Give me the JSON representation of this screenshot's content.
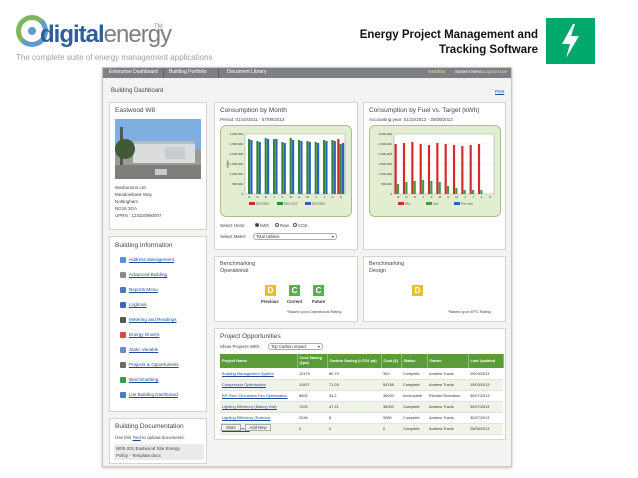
{
  "header": {
    "logo_digital": "digital",
    "logo_energy": "energy",
    "logo_tm": "TM",
    "tagline": "The complete suite of energy management applications",
    "title_line1": "Energy Project Management and",
    "title_line2": "Tracking Software",
    "icon": "lightning-bolt-icon",
    "brand_color": "#00a86b"
  },
  "nav": {
    "tabs": [
      "Enterprise Dashboard",
      "Building Portfolio",
      "Document Library"
    ],
    "user": "test0000",
    "links": [
      "System Menu",
      "Logout User"
    ]
  },
  "page": {
    "title": "Building Dashboard",
    "print": "Print"
  },
  "building": {
    "name": "Eastwood W8",
    "address": [
      "Warburtons Ltd",
      "Meadowbank Way",
      "Nottingham",
      "NG16 3GA",
      "UPRN : 124320990007"
    ]
  },
  "building_info": {
    "title": "Building Information",
    "items": [
      {
        "label": "Address Management",
        "icon": "address-icon",
        "color": "#5a8fd0"
      },
      {
        "label": "Advanced Building",
        "icon": "tools-icon",
        "color": "#8a8a8a"
      },
      {
        "label": "Reports Menu",
        "icon": "reports-icon",
        "color": "#4a78c0"
      },
      {
        "label": "Logbook",
        "icon": "logbook-icon",
        "color": "#3a6ab0"
      },
      {
        "label": "Metering and Readings",
        "icon": "meter-icon",
        "color": "#555555"
      },
      {
        "label": "Energy Drivers",
        "icon": "drivers-icon",
        "color": "#d04a4a"
      },
      {
        "label": "Static Variable",
        "icon": "static-icon",
        "color": "#6a8ac0"
      },
      {
        "label": "Projects & Opportunities",
        "icon": "projects-icon",
        "color": "#6a6a6a"
      },
      {
        "label": "Benchmarking",
        "icon": "benchmark-icon",
        "color": "#3a9a4a"
      },
      {
        "label": "Lite Building Dashboard",
        "icon": "dashboard-icon",
        "color": "#4a7ac0"
      }
    ]
  },
  "documentation": {
    "title": "Building Documentation",
    "instruction_pre": "Use this ",
    "instruction_link": "Tool",
    "instruction_post": " to upload documents.",
    "doc_line1": "W00-201 Eastwood Site Energy",
    "doc_line2": "Policy - Template.docx"
  },
  "consumption_month": {
    "title": "Consumption by Month",
    "period": "Period: 01/10/2011 - 07/09/2013",
    "units_label": "Select Units:",
    "units": [
      "kWh",
      "Raw",
      "CO2"
    ],
    "meter_label": "Select Meter:",
    "meter_value": "Total Utilities"
  },
  "consumption_fuel": {
    "title": "Consumption by Fuel vs. Target (kWh)",
    "period": "Accounting year: 01/10/2012 - 30/09/2013"
  },
  "chart_data": [
    {
      "type": "bar",
      "title": "",
      "ylabel": "kWh",
      "categories": [
        "O",
        "N",
        "D",
        "J",
        "F",
        "M",
        "A",
        "M",
        "J",
        "J",
        "A",
        "S"
      ],
      "ylim": [
        0,
        3000000
      ],
      "yticks": [
        "3,000,000",
        "2,500,000",
        "2,000,000",
        "1,500,000",
        "1,000,000",
        "500,000",
        "0"
      ],
      "series": [
        {
          "name": "2011-2012",
          "color": "#c8282a",
          "values": [
            null,
            null,
            null,
            null,
            null,
            null,
            null,
            null,
            null,
            null,
            null,
            2750000
          ]
        },
        {
          "name": "2012-2013",
          "color": "#2e8c2e",
          "values": [
            2750000,
            2650000,
            2800000,
            2750000,
            2600000,
            2800000,
            2700000,
            2650000,
            2600000,
            2700000,
            2700000,
            2500000
          ]
        },
        {
          "name": "2011-2012",
          "color": "#2f5fbf",
          "values": [
            2700000,
            2600000,
            2750000,
            2750000,
            2550000,
            2700000,
            2650000,
            2600000,
            2550000,
            2650000,
            2650000,
            2550000
          ]
        }
      ]
    },
    {
      "type": "bar",
      "title": "",
      "categories": [
        "O",
        "N",
        "D",
        "J",
        "F",
        "M",
        "A",
        "M",
        "J",
        "J",
        "A",
        "S"
      ],
      "ylim": [
        0,
        3000000
      ],
      "yticks": [
        "3,000,000",
        "2,500,000",
        "2,000,000",
        "1,500,000",
        "1,000,000",
        "500,000",
        "0"
      ],
      "series": [
        {
          "name": "Elec",
          "color": "#d42a2a",
          "values": [
            2500000,
            2550000,
            2600000,
            2500000,
            2450000,
            2550000,
            2500000,
            2450000,
            2400000,
            2450000,
            2500000,
            null
          ]
        },
        {
          "name": "Gas",
          "color": "#3aa040",
          "values": [
            500000,
            600000,
            650000,
            700000,
            650000,
            600000,
            400000,
            300000,
            200000,
            200000,
            200000,
            null
          ]
        },
        {
          "name": "Prev year",
          "color": "#2f5fbf",
          "values": [
            null,
            null,
            null,
            null,
            null,
            null,
            null,
            null,
            null,
            null,
            null,
            null
          ]
        }
      ]
    }
  ],
  "bench_op": {
    "title_line1": "Benchmarking",
    "title_line2": "Operational",
    "ratings": [
      {
        "grade": "D",
        "label": "Previous",
        "color": "#e6c12a"
      },
      {
        "grade": "C",
        "label": "Current",
        "color": "#56b14c"
      },
      {
        "grade": "C",
        "label": "Future",
        "color": "#56b14c"
      }
    ],
    "note": "*Based upon Operational Rating"
  },
  "bench_design": {
    "title_line1": "Benchmarking",
    "title_line2": "Design",
    "grade": "D",
    "color": "#e6c12a",
    "note": "*Based upon EPC Rating"
  },
  "projects": {
    "title": "Project Opportunities",
    "show_label": "Show Projects With:",
    "show_value": "Top Carbon Impact",
    "columns": [
      "Project Name",
      "Cost Saving (£pa)",
      "Carbon Saving (t CO2 pa)",
      "Cost (£)",
      "Status",
      "Owner",
      "Last Updated"
    ],
    "rows": [
      [
        "Building Management System",
        "12475",
        "80.79",
        "300",
        "Complete",
        "Andrew Travis",
        "19/03/2013"
      ],
      [
        "Compressor Optimisation",
        "11007",
        "71.28",
        "54768",
        "Complete",
        "Andrew Travis",
        "19/03/2013"
      ],
      [
        "BP Oven Circulation Fan Optimisation",
        "8600",
        "54.2",
        "36000",
        "Incomplete",
        "Richard Robottom",
        "30/07/2013"
      ],
      [
        "Lighting Efficiency (Baking Hall)",
        "7200",
        "47.21",
        "36000",
        "Complete",
        "Andrew Travis",
        "30/07/2013"
      ],
      [
        "Lighting Efficiency (Exterior)",
        "2036",
        "8",
        "9080",
        "Complete",
        "Andrew Travis",
        "30/07/2013"
      ],
      [
        "Boiler Efficiency",
        "0",
        "0",
        "0",
        "Complete",
        "Andrew Travis",
        "25/06/2013"
      ]
    ],
    "buttons": [
      "More",
      "Add New"
    ]
  }
}
